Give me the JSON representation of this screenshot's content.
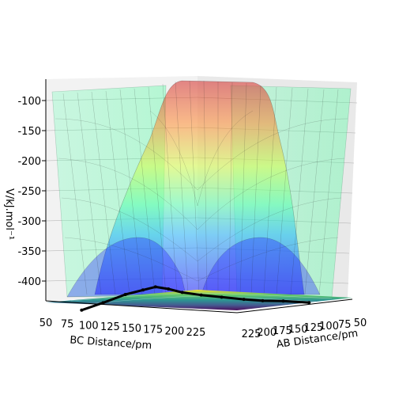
{
  "chart_data": {
    "type": "surface3d",
    "zlabel": "V/kJ.mol⁻¹",
    "xlabel": "BC Distance/pm",
    "ylabel": "AB Distance/pm",
    "x_ticks": [
      "50",
      "75",
      "100",
      "125",
      "150",
      "175",
      "200",
      "225"
    ],
    "y_ticks": [
      "225",
      "200",
      "175",
      "150",
      "125",
      "100",
      "75",
      "50"
    ],
    "z_ticks": [
      "-100",
      "-150",
      "-200",
      "-250",
      "-300",
      "-350",
      "-400"
    ],
    "zlim": [
      -440,
      -75
    ],
    "xlim": [
      50,
      230
    ],
    "ylim": [
      50,
      230
    ],
    "colormap": "jet",
    "surface_alpha": 0.4,
    "floor_contour_colormap": "viridis",
    "surface_bands": [
      {
        "z_from": -440,
        "z_to": -330,
        "color": "#1a1aff"
      },
      {
        "z_from": -330,
        "z_to": -240,
        "color": "#19e3b5"
      },
      {
        "z_from": -240,
        "z_to": -170,
        "color": "#c6ff4a"
      },
      {
        "z_from": -170,
        "z_to": -130,
        "color": "#ff9a2b"
      },
      {
        "z_from": -130,
        "z_to": -75,
        "color": "#d9262b"
      }
    ],
    "trajectory": {
      "color": "#000000",
      "points": [
        {
          "bc": 92,
          "ab": 228,
          "v": -420
        },
        {
          "bc": 105,
          "ab": 200,
          "v": -410
        },
        {
          "bc": 120,
          "ab": 175,
          "v": -398
        },
        {
          "bc": 132,
          "ab": 155,
          "v": -392
        },
        {
          "bc": 140,
          "ab": 140,
          "v": -388
        },
        {
          "bc": 150,
          "ab": 128,
          "v": -392
        },
        {
          "bc": 162,
          "ab": 118,
          "v": -398
        },
        {
          "bc": 180,
          "ab": 108,
          "v": -402
        },
        {
          "bc": 200,
          "ab": 98,
          "v": -405
        },
        {
          "bc": 222,
          "ab": 88,
          "v": -408
        },
        {
          "bc": 240,
          "ab": 78,
          "v": -410
        },
        {
          "bc": 260,
          "ab": 68,
          "v": -410
        },
        {
          "bc": 285,
          "ab": 55,
          "v": -412
        }
      ]
    }
  }
}
